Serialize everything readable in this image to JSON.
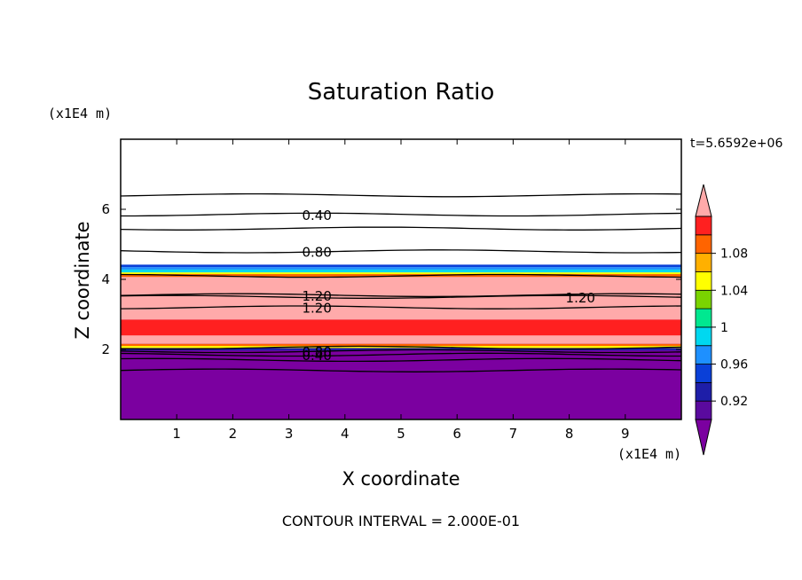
{
  "chart_data": {
    "type": "contour",
    "title": "Saturation Ratio",
    "xlabel": "X coordinate",
    "ylabel": "Z coordinate",
    "x_units": "(x1E4 m)",
    "y_units": "(x1E4 m)",
    "xlim": [
      0,
      10
    ],
    "ylim": [
      0,
      8
    ],
    "x_ticks": [
      1,
      2,
      3,
      4,
      5,
      6,
      7,
      8,
      9
    ],
    "y_ticks": [
      2,
      4,
      6
    ],
    "time_label": "t=5.6592e+06",
    "footer": "CONTOUR INTERVAL = 2.000E-01",
    "colorbar": {
      "tick_labels": [
        "0.92",
        "0.96",
        "1",
        "1.04",
        "1.08"
      ],
      "tick_values": [
        0.92,
        0.96,
        1.0,
        1.04,
        1.08
      ],
      "levels": [
        {
          "value": 0.9,
          "color": "#5a0a9e"
        },
        {
          "value": 0.92,
          "color": "#1e1ea8"
        },
        {
          "value": 0.94,
          "color": "#0a40d8"
        },
        {
          "value": 0.96,
          "color": "#1e90ff"
        },
        {
          "value": 0.98,
          "color": "#00d8f0"
        },
        {
          "value": 1.0,
          "color": "#00e890"
        },
        {
          "value": 1.02,
          "color": "#7ad400"
        },
        {
          "value": 1.04,
          "color": "#ffff00"
        },
        {
          "value": 1.06,
          "color": "#ffb000"
        },
        {
          "value": 1.08,
          "color": "#ff6400"
        },
        {
          "value": 1.1,
          "color": "#ff2020"
        }
      ],
      "under_color": "#7b00a0",
      "over_color": "#ffaaaa"
    },
    "bands": [
      {
        "z0": 0.0,
        "z1": 4.15,
        "color": "#7b00a0"
      },
      {
        "z0": 1.97,
        "z1": 2.04,
        "color": "#1e1ea8"
      },
      {
        "z0": 2.04,
        "z1": 2.1,
        "color": "#ffff00"
      },
      {
        "z0": 2.1,
        "z1": 2.16,
        "color": "#ff6400"
      },
      {
        "z0": 2.16,
        "z1": 2.5,
        "color": "#ffaaaa"
      },
      {
        "z0": 2.4,
        "z1": 2.85,
        "color": "#ff2020"
      },
      {
        "z0": 2.85,
        "z1": 4.1,
        "color": "#ffaaaa"
      },
      {
        "z0": 4.07,
        "z1": 4.15,
        "color": "#ff6400"
      },
      {
        "z0": 4.15,
        "z1": 4.2,
        "color": "#ffff00"
      },
      {
        "z0": 4.2,
        "z1": 4.28,
        "color": "#00d8f0"
      },
      {
        "z0": 4.28,
        "z1": 4.35,
        "color": "#1e90ff"
      },
      {
        "z0": 4.35,
        "z1": 4.42,
        "color": "#0a40d8"
      }
    ],
    "contours": [
      {
        "z": 1.4
      },
      {
        "z": 1.7
      },
      {
        "z": 1.85,
        "label": "0.40",
        "label_x": 3.5
      },
      {
        "z": 1.95,
        "label": "0.80",
        "label_x": 3.5
      },
      {
        "z": 2.05
      },
      {
        "z": 3.2,
        "label": "1.20",
        "label_x": 3.5
      },
      {
        "z": 3.55,
        "label": "1.20",
        "label_x": 3.5
      },
      {
        "z": 3.5,
        "label": "1.20",
        "label_x": 8.2
      },
      {
        "z": 4.1
      },
      {
        "z": 4.8,
        "label": "0.80",
        "label_x": 3.5
      },
      {
        "z": 5.45
      },
      {
        "z": 5.85,
        "label": "0.40",
        "label_x": 3.5
      },
      {
        "z": 6.4
      }
    ]
  }
}
